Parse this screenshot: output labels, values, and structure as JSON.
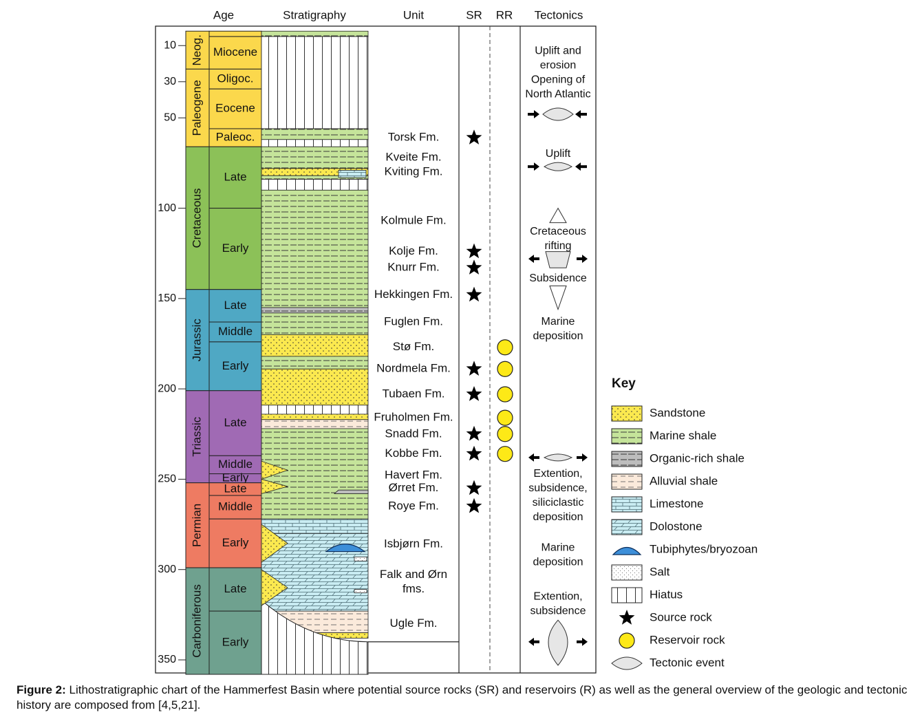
{
  "headers": {
    "age": "Age",
    "stratigraphy": "Stratigraphy",
    "unit": "Unit",
    "sr": "SR",
    "rr": "RR",
    "tectonics": "Tectonics"
  },
  "age_ticks": [
    {
      "value": 10,
      "label": "10"
    },
    {
      "value": 30,
      "label": "30"
    },
    {
      "value": 50,
      "label": "50"
    },
    {
      "value": 100,
      "label": "100"
    },
    {
      "value": 150,
      "label": "150"
    },
    {
      "value": 200,
      "label": "200"
    },
    {
      "value": 250,
      "label": "250"
    },
    {
      "value": 300,
      "label": "300"
    },
    {
      "value": 350,
      "label": "350"
    }
  ],
  "systems": [
    {
      "name": "Neog.",
      "top": 2,
      "base": 23,
      "color": "#fbd84c"
    },
    {
      "name": "Paleogene",
      "top": 23,
      "base": 66,
      "color": "#fbd84c"
    },
    {
      "name": "Cretaceous",
      "top": 66,
      "base": 145,
      "color": "#8cc158"
    },
    {
      "name": "Jurassic",
      "top": 145,
      "base": 201,
      "color": "#4fa8c4"
    },
    {
      "name": "Triassic",
      "top": 201,
      "base": 252,
      "color": "#a06ab4"
    },
    {
      "name": "Permian",
      "top": 252,
      "base": 299,
      "color": "#ee7b62"
    },
    {
      "name": "Carboniferous",
      "top": 299,
      "base": 358,
      "color": "#6fa18f"
    }
  ],
  "series": [
    {
      "name": "",
      "top": 2,
      "base": 5,
      "color": "#fbd84c"
    },
    {
      "name": "Miocene",
      "top": 5,
      "base": 23,
      "color": "#fbd84c"
    },
    {
      "name": "Oligoc.",
      "top": 23,
      "base": 34,
      "color": "#fbd84c"
    },
    {
      "name": "Eocene",
      "top": 34,
      "base": 56,
      "color": "#fbd84c"
    },
    {
      "name": "Paleoc.",
      "top": 56,
      "base": 66,
      "color": "#fbd84c"
    },
    {
      "name": "Late",
      "top": 66,
      "base": 100,
      "color": "#8cc158"
    },
    {
      "name": "Early",
      "top": 100,
      "base": 145,
      "color": "#8cc158"
    },
    {
      "name": "Late",
      "top": 145,
      "base": 163,
      "color": "#4fa8c4"
    },
    {
      "name": "Middle",
      "top": 163,
      "base": 174,
      "color": "#4fa8c4"
    },
    {
      "name": "Early",
      "top": 174,
      "base": 201,
      "color": "#4fa8c4"
    },
    {
      "name": "Late",
      "top": 201,
      "base": 237,
      "color": "#a06ab4"
    },
    {
      "name": "Middle",
      "top": 237,
      "base": 247,
      "color": "#a06ab4"
    },
    {
      "name": "Early",
      "top": 247,
      "base": 252,
      "color": "#a06ab4"
    },
    {
      "name": "Late",
      "top": 252,
      "base": 259,
      "color": "#ee7b62"
    },
    {
      "name": "Middle",
      "top": 259,
      "base": 272,
      "color": "#ee7b62"
    },
    {
      "name": "Early",
      "top": 272,
      "base": 299,
      "color": "#ee7b62"
    },
    {
      "name": "Late",
      "top": 299,
      "base": 323,
      "color": "#6fa18f"
    },
    {
      "name": "Early",
      "top": 323,
      "base": 358,
      "color": "#6fa18f"
    }
  ],
  "strat_layers": [
    {
      "lith": "shale",
      "top": 2,
      "base": 5
    },
    {
      "lith": "hiatus",
      "top": 5,
      "base": 56
    },
    {
      "lith": "shale",
      "top": 56,
      "base": 62
    },
    {
      "lith": "hiatus",
      "top": 62,
      "base": 66
    },
    {
      "lith": "shale",
      "top": 66,
      "base": 78
    },
    {
      "lith": "sandstone",
      "top": 78,
      "base": 82
    },
    {
      "lith": "shale",
      "top": 82,
      "base": 84
    },
    {
      "lith": "hiatus",
      "top": 84,
      "base": 90
    },
    {
      "lith": "shale",
      "top": 90,
      "base": 155
    },
    {
      "lith": "organic",
      "top": 155,
      "base": 158
    },
    {
      "lith": "shale",
      "top": 158,
      "base": 170
    },
    {
      "lith": "sandstone",
      "top": 170,
      "base": 182
    },
    {
      "lith": "shale",
      "top": 182,
      "base": 189
    },
    {
      "lith": "sandstone",
      "top": 189,
      "base": 209
    },
    {
      "lith": "hiatus",
      "top": 209,
      "base": 214
    },
    {
      "lith": "sandstone",
      "top": 214,
      "base": 217
    },
    {
      "lith": "alluvial",
      "top": 217,
      "base": 222
    },
    {
      "lith": "shale",
      "top": 222,
      "base": 272
    },
    {
      "lith": "limestone",
      "top": 272,
      "base": 280
    },
    {
      "lith": "dolostone",
      "top": 280,
      "base": 323
    },
    {
      "lith": "alluvial",
      "top": 323,
      "base": 335
    },
    {
      "lith": "sandstone",
      "top": 335,
      "base": 338
    }
  ],
  "units": [
    {
      "name": "Torsk Fm.",
      "age": 61,
      "sr": true,
      "rr": false
    },
    {
      "name": "Kveite Fm.",
      "age": 72,
      "sr": false,
      "rr": false
    },
    {
      "name": "Kviting Fm.",
      "age": 80,
      "sr": false,
      "rr": false
    },
    {
      "name": "Kolmule Fm.",
      "age": 107,
      "sr": false,
      "rr": false
    },
    {
      "name": "Kolje Fm.",
      "age": 124,
      "sr": true,
      "rr": false
    },
    {
      "name": "Knurr Fm.",
      "age": 133,
      "sr": true,
      "rr": false
    },
    {
      "name": "Hekkingen Fm.",
      "age": 148,
      "sr": true,
      "rr": false
    },
    {
      "name": "Fuglen Fm.",
      "age": 163,
      "sr": false,
      "rr": false
    },
    {
      "name": "Stø Fm.",
      "age": 177,
      "sr": false,
      "rr": true
    },
    {
      "name": "Nordmela Fm.",
      "age": 189,
      "sr": true,
      "rr": true
    },
    {
      "name": "Tubaen Fm.",
      "age": 203,
      "sr": true,
      "rr": true
    },
    {
      "name": "Fruholmen Fm.",
      "age": 216,
      "sr": false,
      "rr": true
    },
    {
      "name": "Snadd Fm.",
      "age": 225,
      "sr": true,
      "rr": true
    },
    {
      "name": "Kobbe Fm.",
      "age": 236,
      "sr": true,
      "rr": true
    },
    {
      "name": "Havert Fm.",
      "age": 248,
      "sr": false,
      "rr": false
    },
    {
      "name": "Ørret Fm.",
      "age": 255,
      "sr": true,
      "rr": false
    },
    {
      "name": "Roye Fm.",
      "age": 265,
      "sr": true,
      "rr": false
    },
    {
      "name": "Isbjørn Fm.",
      "age": 286,
      "sr": false,
      "rr": false
    },
    {
      "name": "Falk and Ørn",
      "age": 303,
      "sr": false,
      "rr": false
    },
    {
      "name": "fms.",
      "age": 311,
      "sr": false,
      "rr": false
    },
    {
      "name": "Ugle Fm.",
      "age": 330,
      "sr": false,
      "rr": false
    }
  ],
  "tectonics_text": [
    {
      "text": "Uplift and",
      "age": 13
    },
    {
      "text": "erosion",
      "age": 21
    },
    {
      "text": "Opening of",
      "age": 29
    },
    {
      "text": "North Atlantic",
      "age": 37
    },
    {
      "text": "Uplift",
      "age": 70
    },
    {
      "text": "Cretaceous",
      "age": 113
    },
    {
      "text": "rifting",
      "age": 121
    },
    {
      "text": "Subsidence",
      "age": 139
    },
    {
      "text": "Marine",
      "age": 163
    },
    {
      "text": "deposition",
      "age": 171
    },
    {
      "text": "Extention,",
      "age": 247
    },
    {
      "text": "subsidence,",
      "age": 255
    },
    {
      "text": "siliciclastic",
      "age": 263
    },
    {
      "text": "deposition",
      "age": 271
    },
    {
      "text": "Marine",
      "age": 288
    },
    {
      "text": "deposition",
      "age": 296
    },
    {
      "text": "Extention,",
      "age": 315
    },
    {
      "text": "subsidence",
      "age": 323
    }
  ],
  "legend": {
    "title": "Key",
    "items": [
      {
        "label": "Sandstone",
        "symbol": "sandstone"
      },
      {
        "label": "Marine shale",
        "symbol": "shale"
      },
      {
        "label": "Organic-rich shale",
        "symbol": "organic"
      },
      {
        "label": "Alluvial shale",
        "symbol": "alluvial"
      },
      {
        "label": "Limestone",
        "symbol": "limestone"
      },
      {
        "label": "Dolostone",
        "symbol": "dolostone"
      },
      {
        "label": "Tubiphytes/bryozoan",
        "symbol": "tubiphytes"
      },
      {
        "label": "Salt",
        "symbol": "salt"
      },
      {
        "label": "Hiatus",
        "symbol": "hiatus"
      },
      {
        "label": "Source rock",
        "symbol": "star"
      },
      {
        "label": "Reservoir rock",
        "symbol": "circle"
      },
      {
        "label": "Tectonic event",
        "symbol": "lens"
      }
    ]
  },
  "caption": {
    "label": "Figure 2:",
    "text": " Lithostratigraphic chart of the Hammerfest Basin where potential source rocks (SR) and reservoirs (R) as well as the general overview of the geologic and tectonic history are composed from [4,5,21]."
  },
  "colors": {
    "sandstone": "#fbe94f",
    "shale": "#c5e49a",
    "organic": "#bdbdbd",
    "alluvial": "#fbeadb",
    "limestone": "#c9ecf2",
    "dolostone": "#c9ecf2",
    "tubiphytes": "#3d8fd9",
    "star": "#000000",
    "reservoir": "#fde917"
  }
}
